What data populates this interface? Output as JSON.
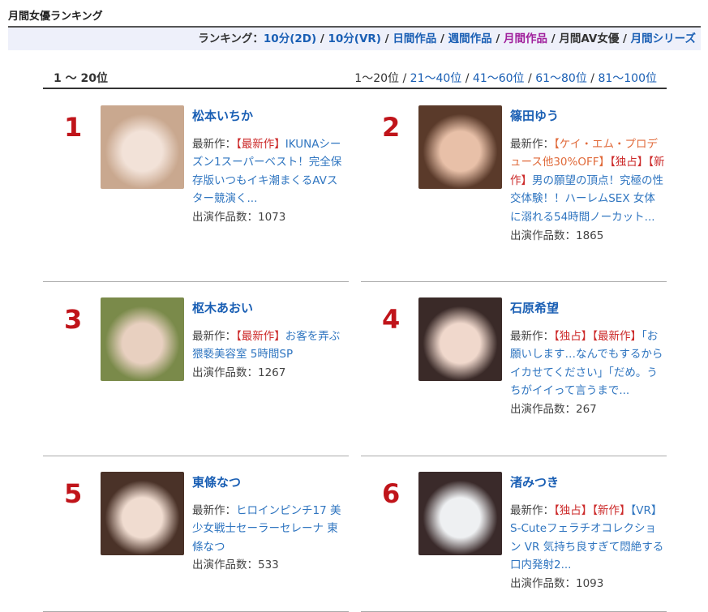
{
  "title": "月間女優ランキング",
  "subnav": {
    "label": "ランキング：",
    "items": [
      {
        "label": "10分(2D)",
        "state": "link"
      },
      {
        "label": "10分(VR)",
        "state": "link"
      },
      {
        "label": "日間作品",
        "state": "link"
      },
      {
        "label": "週間作品",
        "state": "link"
      },
      {
        "label": "月間作品",
        "state": "visited"
      },
      {
        "label": "月間AV女優",
        "state": "current"
      },
      {
        "label": "月間シリーズ",
        "state": "link"
      }
    ]
  },
  "pager": {
    "range": "1 ～ 20位",
    "pages": [
      {
        "label": "1〜20位",
        "current": true
      },
      {
        "label": "21〜40位"
      },
      {
        "label": "41〜60位"
      },
      {
        "label": "61〜80位"
      },
      {
        "label": "81〜100位"
      }
    ]
  },
  "labels": {
    "latest": "最新作：",
    "count": "出演作品数："
  },
  "actresses": [
    {
      "rank": "1",
      "name": "松本いちか",
      "work": [
        {
          "t": "【最新作】",
          "c": "tag"
        },
        {
          "t": "IKUNAシーズン1スーパーベスト！完全保存版いつもイキ潮まくるAVスター競演く...",
          "c": "link"
        }
      ],
      "count": "1073",
      "photo": [
        "#c9a88f",
        "#f2e2d8"
      ]
    },
    {
      "rank": "2",
      "name": "篠田ゆう",
      "work": [
        {
          "t": "【ケイ・エム・プロデュース他30%OFF】",
          "c": "promo"
        },
        {
          "t": "【独占】【新作】",
          "c": "tag"
        },
        {
          "t": "男の願望の頂点！究極の性交体験！！ハーレムSEX 女体に溺れる54時間ノーカット...",
          "c": "link"
        }
      ],
      "count": "1865",
      "photo": [
        "#5a3a2a",
        "#e8c0a8"
      ]
    },
    {
      "rank": "3",
      "name": "枢木あおい",
      "work": [
        {
          "t": "【最新作】",
          "c": "tag"
        },
        {
          "t": "お客を弄ぶ猥褻美容室 5時間SP",
          "c": "link"
        }
      ],
      "count": "1267",
      "photo": [
        "#7a8a4a",
        "#e8d0c0"
      ]
    },
    {
      "rank": "4",
      "name": "石原希望",
      "work": [
        {
          "t": "【独占】【最新作】",
          "c": "tag"
        },
        {
          "t": "「お願いします…なんでもするからイカせてください」「だめ。うちがイイって言うまで...",
          "c": "link"
        }
      ],
      "count": "267",
      "photo": [
        "#3a2a28",
        "#f0d8cc"
      ]
    },
    {
      "rank": "5",
      "name": "東條なつ",
      "work": [
        {
          "t": "ヒロインピンチ17 美少女戦士セーラーセレーナ 東條なつ",
          "c": "link"
        }
      ],
      "count": "533",
      "photo": [
        "#4a3228",
        "#f0dcd0"
      ]
    },
    {
      "rank": "6",
      "name": "渚みつき",
      "work": [
        {
          "t": "【独占】【新作】",
          "c": "tag"
        },
        {
          "t": "【VR】S-Cuteフェラチオコレクション VR 気持ち良すぎて悶絶する口内発射2...",
          "c": "link"
        }
      ],
      "count": "1093",
      "photo": [
        "#3a2a2a",
        "#eef0f2"
      ]
    }
  ]
}
